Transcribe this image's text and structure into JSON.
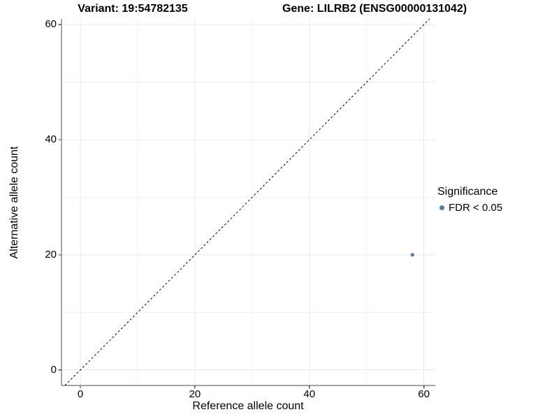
{
  "chart_data": {
    "type": "scatter",
    "title_left": "Variant: 19:54782135",
    "title_right": "Gene: LILRB2 (ENSG00000131042)",
    "xlabel": "Reference allele count",
    "ylabel": "Alternative allele count",
    "xlim": [
      -3.3,
      62
    ],
    "ylim": [
      -2.7,
      61
    ],
    "x_ticks": [
      0,
      20,
      40,
      60
    ],
    "y_ticks": [
      0,
      20,
      40,
      60
    ],
    "x_minor_ticks": [
      10,
      30,
      50
    ],
    "y_minor_ticks": [
      10,
      30,
      50
    ],
    "grid": "on",
    "identity_line": {
      "slope": 1,
      "intercept": 0,
      "style": "dashed",
      "color": "#000000"
    },
    "series": [
      {
        "name": "FDR < 0.05",
        "color": "#4e7cab",
        "points": [
          {
            "x": 58,
            "y": 20
          }
        ]
      }
    ],
    "legend": {
      "title": "Significance",
      "position": "right",
      "items": [
        {
          "label": "FDR < 0.05",
          "color": "#4e7cab"
        }
      ]
    },
    "colors": {
      "grid_major": "#e8e8e8",
      "grid_minor": "#f1f1f1",
      "axis": "#4d4d4d",
      "tick": "#4d4d4d",
      "text": "#000000"
    }
  }
}
